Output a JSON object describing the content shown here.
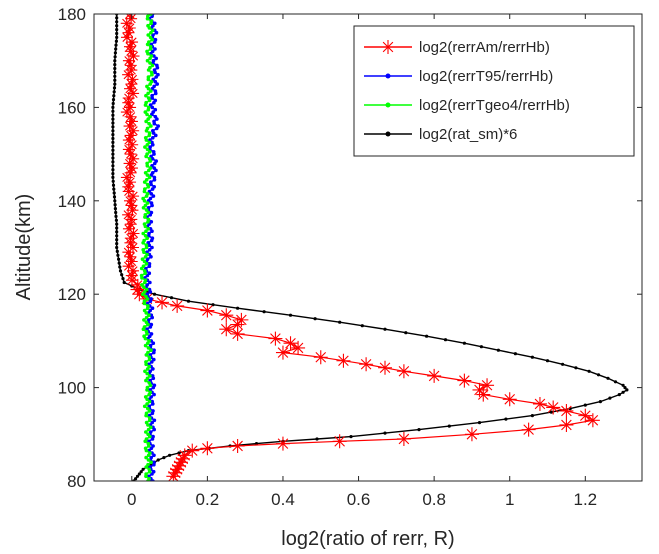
{
  "chart_data": {
    "type": "line",
    "xlabel": "log2(ratio of rerr, R)",
    "ylabel": "Altitude(km)",
    "xlim": [
      -0.1,
      1.35
    ],
    "ylim": [
      80,
      180
    ],
    "xticks": [
      0,
      0.2,
      0.4,
      0.6,
      0.8,
      1,
      1.2
    ],
    "xtick_labels": [
      "0",
      "0.2",
      "0.4",
      "0.6",
      "0.8",
      "1",
      "1.2"
    ],
    "yticks": [
      80,
      100,
      120,
      140,
      160,
      180
    ],
    "ytick_labels": [
      "80",
      "100",
      "120",
      "140",
      "160",
      "180"
    ],
    "grid": false,
    "legend_position": "top-right",
    "series": [
      {
        "name": "log2(rerrAm/rerrHb)",
        "color": "#ff0000",
        "marker": "asterisk",
        "points": [
          [
            -0.005,
            180
          ],
          [
            -0.01,
            176
          ],
          [
            0.0,
            172
          ],
          [
            -0.005,
            168
          ],
          [
            0.0,
            164
          ],
          [
            -0.01,
            160
          ],
          [
            0.0,
            156
          ],
          [
            -0.005,
            152
          ],
          [
            0.0,
            148
          ],
          [
            -0.01,
            144
          ],
          [
            0.0,
            140
          ],
          [
            -0.005,
            136
          ],
          [
            0.0,
            132
          ],
          [
            -0.005,
            128
          ],
          [
            0.0,
            124
          ],
          [
            0.02,
            120
          ],
          [
            0.04,
            119
          ],
          [
            0.12,
            117.5
          ],
          [
            0.2,
            116.5
          ],
          [
            0.25,
            115.5
          ],
          [
            0.29,
            114.5
          ],
          [
            0.28,
            113.5
          ],
          [
            0.25,
            112.5
          ],
          [
            0.28,
            111.5
          ],
          [
            0.38,
            110.5
          ],
          [
            0.42,
            109.5
          ],
          [
            0.44,
            108.5
          ],
          [
            0.4,
            107.5
          ],
          [
            0.5,
            106.5
          ],
          [
            0.62,
            105
          ],
          [
            0.72,
            103.5
          ],
          [
            0.8,
            102.5
          ],
          [
            0.88,
            101.5
          ],
          [
            0.94,
            100.5
          ],
          [
            0.92,
            99.5
          ],
          [
            0.93,
            98.5
          ],
          [
            1.0,
            97.5
          ],
          [
            1.08,
            96.5
          ],
          [
            1.15,
            95
          ],
          [
            1.2,
            94
          ],
          [
            1.22,
            93
          ],
          [
            1.15,
            92
          ],
          [
            1.05,
            91
          ],
          [
            0.9,
            90
          ],
          [
            0.72,
            89
          ],
          [
            0.55,
            88.5
          ],
          [
            0.4,
            88
          ],
          [
            0.28,
            87.5
          ],
          [
            0.2,
            87
          ],
          [
            0.16,
            86.5
          ],
          [
            0.14,
            85.5
          ],
          [
            0.13,
            84
          ],
          [
            0.12,
            82.5
          ],
          [
            0.11,
            81
          ]
        ]
      },
      {
        "name": "log2(rerrT95/rerrHb)",
        "color": "#0000ff",
        "marker": "dot",
        "points": [
          [
            0.05,
            180
          ],
          [
            0.06,
            176
          ],
          [
            0.055,
            172
          ],
          [
            0.065,
            168
          ],
          [
            0.06,
            164
          ],
          [
            0.055,
            160
          ],
          [
            0.065,
            156
          ],
          [
            0.05,
            152
          ],
          [
            0.06,
            148
          ],
          [
            0.055,
            144
          ],
          [
            0.05,
            140
          ],
          [
            0.045,
            136
          ],
          [
            0.05,
            132
          ],
          [
            0.045,
            128
          ],
          [
            0.04,
            124
          ],
          [
            0.045,
            120
          ],
          [
            0.05,
            116
          ],
          [
            0.045,
            112
          ],
          [
            0.055,
            108
          ],
          [
            0.05,
            104
          ],
          [
            0.055,
            100
          ],
          [
            0.05,
            96
          ],
          [
            0.055,
            92
          ],
          [
            0.05,
            88
          ],
          [
            0.055,
            84
          ],
          [
            0.05,
            80
          ]
        ]
      },
      {
        "name": "log2(rerrTgeo4/rerrHb)",
        "color": "#00ff00",
        "marker": "dot",
        "points": [
          [
            0.045,
            180
          ],
          [
            0.05,
            176
          ],
          [
            0.045,
            172
          ],
          [
            0.05,
            168
          ],
          [
            0.045,
            164
          ],
          [
            0.04,
            160
          ],
          [
            0.045,
            156
          ],
          [
            0.04,
            152
          ],
          [
            0.045,
            148
          ],
          [
            0.04,
            144
          ],
          [
            0.035,
            140
          ],
          [
            0.04,
            136
          ],
          [
            0.035,
            132
          ],
          [
            0.035,
            128
          ],
          [
            0.03,
            124
          ],
          [
            0.035,
            120
          ],
          [
            0.04,
            116
          ],
          [
            0.035,
            112
          ],
          [
            0.045,
            108
          ],
          [
            0.04,
            104
          ],
          [
            0.045,
            100
          ],
          [
            0.04,
            96
          ],
          [
            0.045,
            92
          ],
          [
            0.04,
            88
          ],
          [
            0.045,
            84
          ],
          [
            0.04,
            80
          ]
        ]
      },
      {
        "name": "log2(rat_sm)*6",
        "color": "#000000",
        "marker": "dot",
        "points": [
          [
            -0.04,
            180
          ],
          [
            -0.04,
            175
          ],
          [
            -0.045,
            170
          ],
          [
            -0.045,
            165
          ],
          [
            -0.05,
            160
          ],
          [
            -0.05,
            155
          ],
          [
            -0.05,
            150
          ],
          [
            -0.05,
            145
          ],
          [
            -0.045,
            140
          ],
          [
            -0.04,
            135
          ],
          [
            -0.04,
            130
          ],
          [
            -0.03,
            125
          ],
          [
            -0.02,
            122.5
          ],
          [
            0.02,
            121
          ],
          [
            0.06,
            120
          ],
          [
            0.15,
            118.5
          ],
          [
            0.28,
            117
          ],
          [
            0.42,
            115.5
          ],
          [
            0.55,
            114
          ],
          [
            0.67,
            112.5
          ],
          [
            0.78,
            111
          ],
          [
            0.88,
            109.5
          ],
          [
            0.97,
            108
          ],
          [
            1.06,
            106.5
          ],
          [
            1.14,
            105
          ],
          [
            1.21,
            103.5
          ],
          [
            1.26,
            102
          ],
          [
            1.3,
            100.5
          ],
          [
            1.31,
            99.5
          ],
          [
            1.29,
            98.5
          ],
          [
            1.24,
            97
          ],
          [
            1.16,
            95.5
          ],
          [
            1.06,
            94
          ],
          [
            0.92,
            92.5
          ],
          [
            0.76,
            91
          ],
          [
            0.58,
            89.5
          ],
          [
            0.4,
            88.5
          ],
          [
            0.26,
            87.5
          ],
          [
            0.15,
            86.5
          ],
          [
            0.1,
            85.5
          ],
          [
            0.07,
            84.5
          ],
          [
            0.05,
            83.5
          ],
          [
            0.03,
            82.5
          ],
          [
            0.02,
            81.5
          ],
          [
            0.01,
            80.5
          ],
          [
            0.005,
            80
          ]
        ]
      }
    ]
  }
}
